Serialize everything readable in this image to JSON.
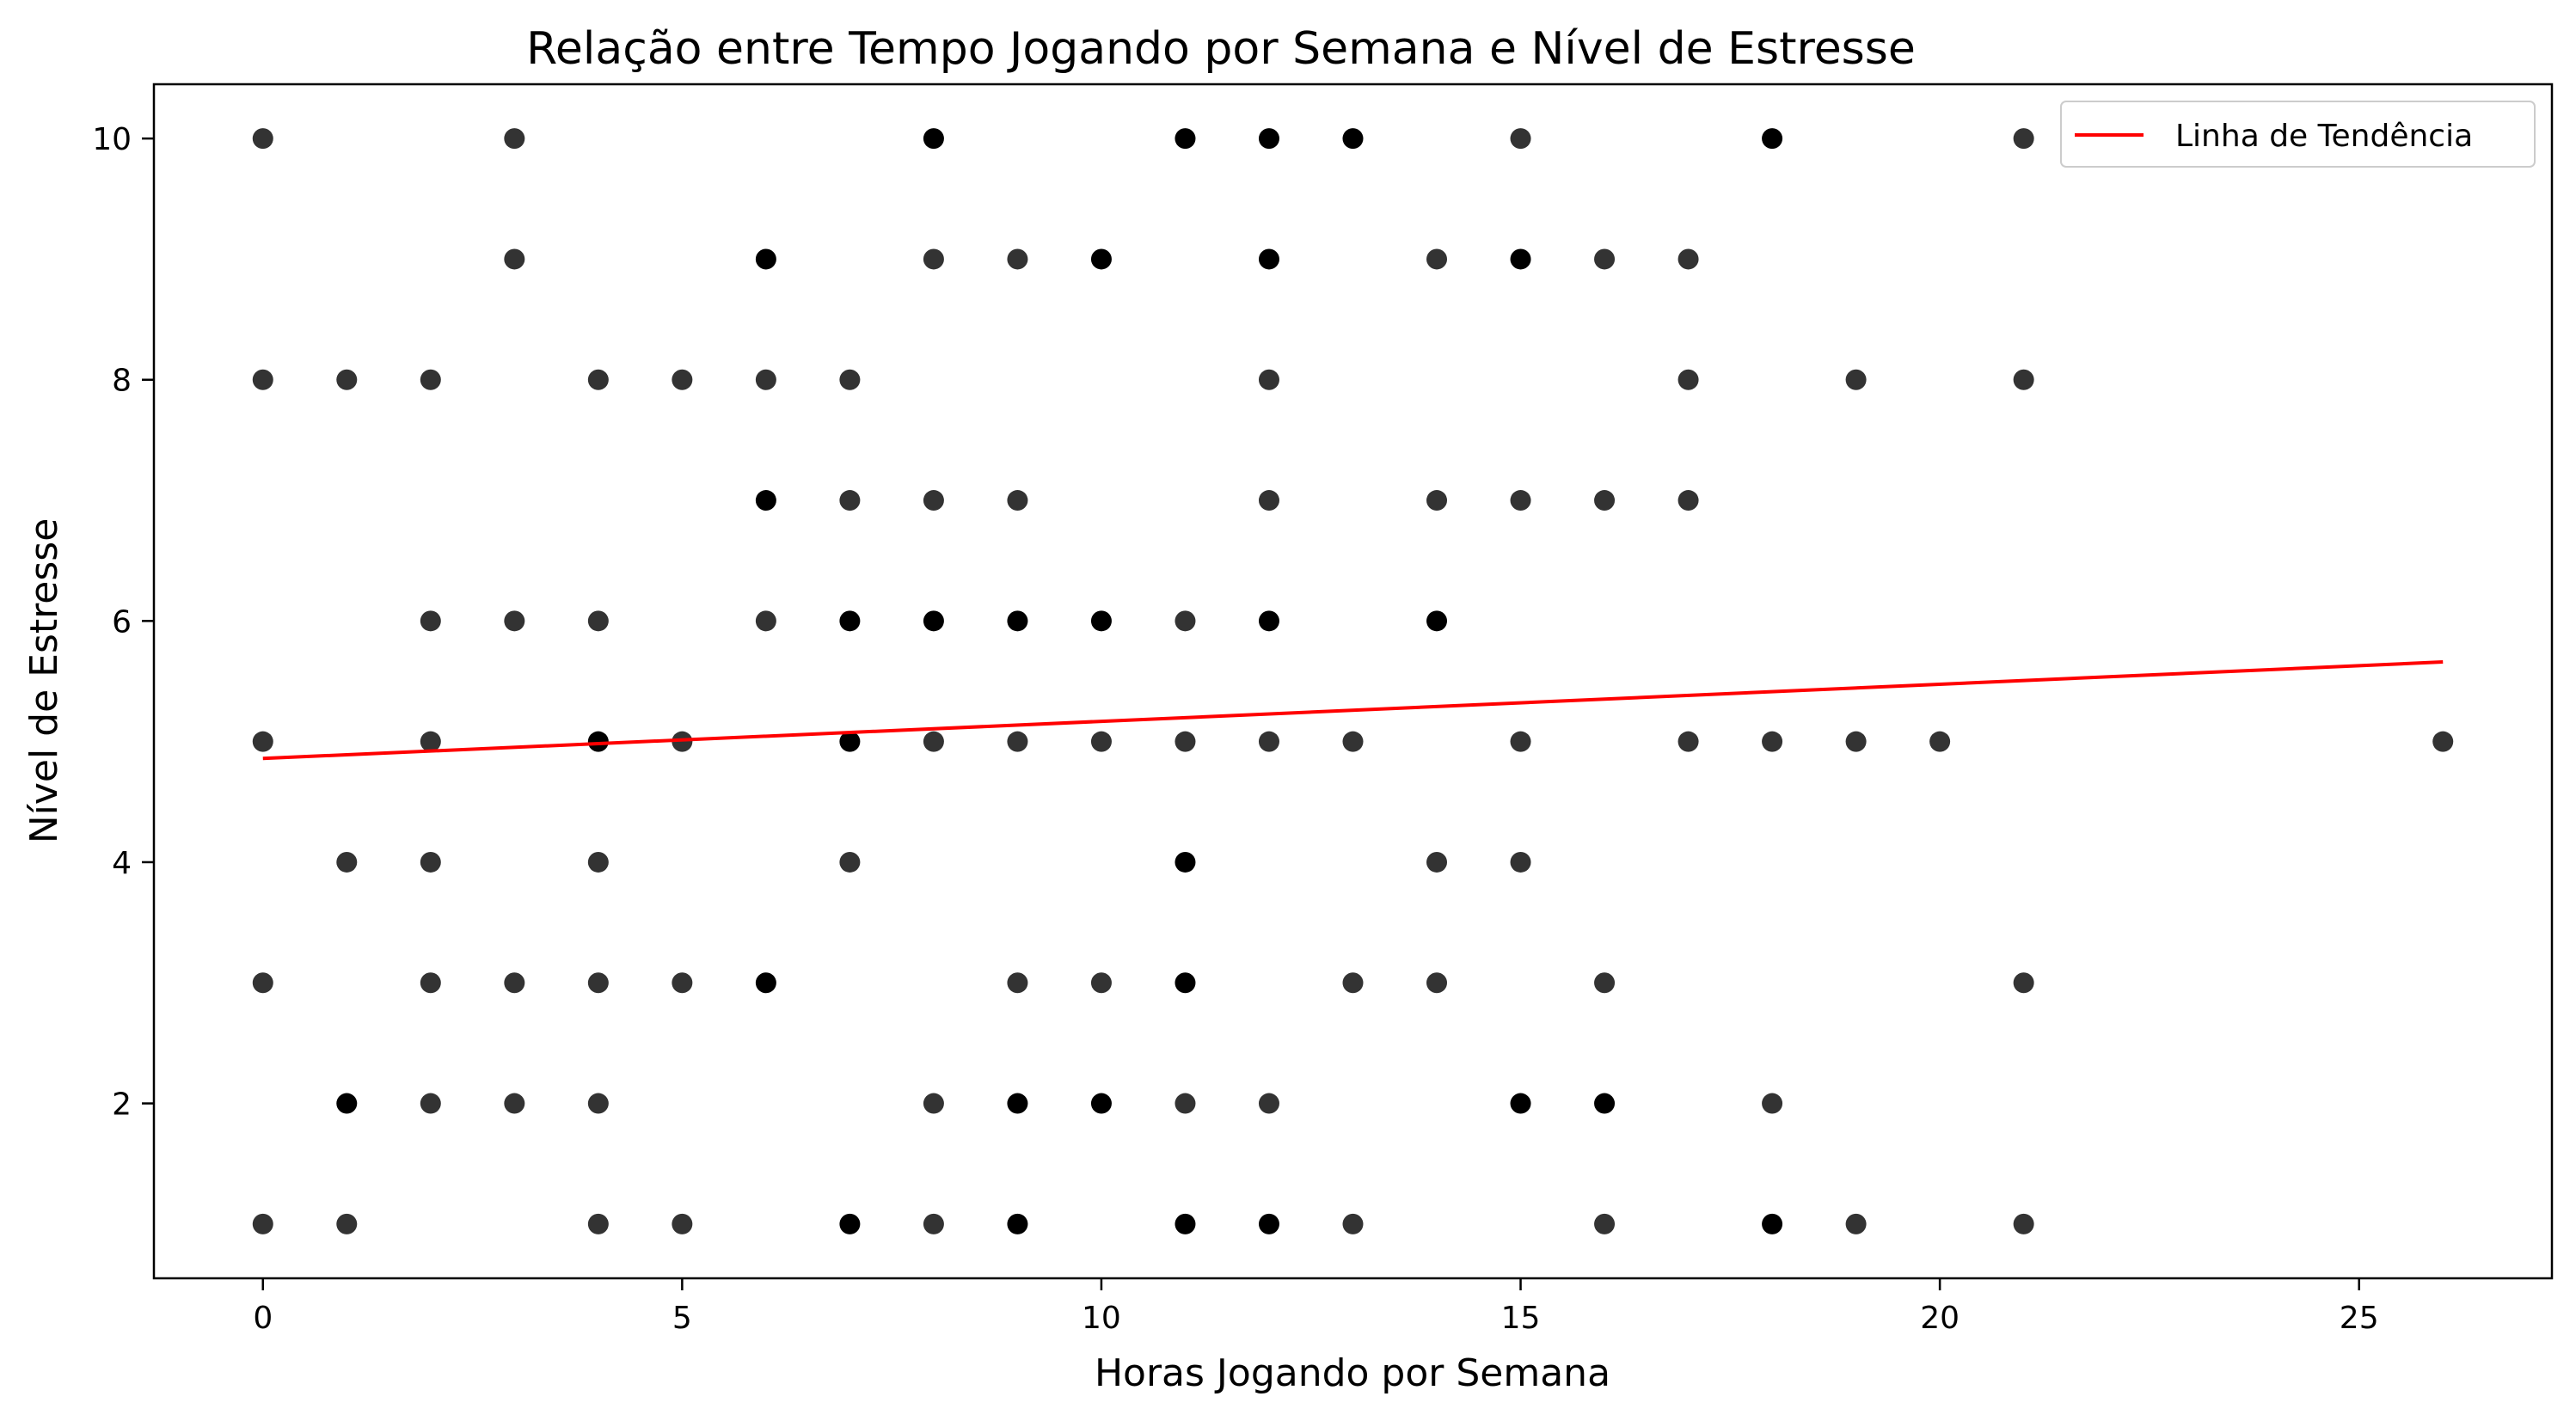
{
  "chart_data": {
    "type": "scatter",
    "title": "Relação entre Tempo Jogando por Semana e Nível de Estresse",
    "xlabel": "Horas Jogando por Semana",
    "ylabel": "Nível de Estresse",
    "xlim": [
      -1.3,
      27.3
    ],
    "ylim": [
      0.55,
      10.45
    ],
    "xticks": [
      0,
      5,
      10,
      15,
      20,
      25
    ],
    "yticks": [
      2,
      4,
      6,
      8,
      10
    ],
    "grid": false,
    "legend": {
      "placement": "top-right",
      "entries": [
        "Linha de Tendência"
      ]
    },
    "colors": {
      "points": "#000000",
      "trend": "#ff0000"
    },
    "points": [
      [
        0,
        10
      ],
      [
        3,
        10
      ],
      [
        8,
        10
      ],
      [
        11,
        10
      ],
      [
        12,
        10
      ],
      [
        13,
        10
      ],
      [
        15,
        10
      ],
      [
        18,
        10
      ],
      [
        21,
        10
      ],
      [
        3,
        9
      ],
      [
        6,
        9
      ],
      [
        8,
        9
      ],
      [
        9,
        9
      ],
      [
        10,
        9
      ],
      [
        12,
        9
      ],
      [
        14,
        9
      ],
      [
        15,
        9
      ],
      [
        16,
        9
      ],
      [
        17,
        9
      ],
      [
        0,
        8
      ],
      [
        1,
        8
      ],
      [
        2,
        8
      ],
      [
        4,
        8
      ],
      [
        5,
        8
      ],
      [
        6,
        8
      ],
      [
        7,
        8
      ],
      [
        12,
        8
      ],
      [
        17,
        8
      ],
      [
        19,
        8
      ],
      [
        21,
        8
      ],
      [
        6,
        7
      ],
      [
        7,
        7
      ],
      [
        8,
        7
      ],
      [
        9,
        7
      ],
      [
        12,
        7
      ],
      [
        14,
        7
      ],
      [
        15,
        7
      ],
      [
        16,
        7
      ],
      [
        17,
        7
      ],
      [
        2,
        6
      ],
      [
        3,
        6
      ],
      [
        4,
        6
      ],
      [
        6,
        6
      ],
      [
        7,
        6
      ],
      [
        8,
        6
      ],
      [
        9,
        6
      ],
      [
        10,
        6
      ],
      [
        11,
        6
      ],
      [
        12,
        6
      ],
      [
        14,
        6
      ],
      [
        0,
        5
      ],
      [
        2,
        5
      ],
      [
        4,
        5
      ],
      [
        5,
        5
      ],
      [
        7,
        5
      ],
      [
        8,
        5
      ],
      [
        9,
        5
      ],
      [
        10,
        5
      ],
      [
        11,
        5
      ],
      [
        12,
        5
      ],
      [
        13,
        5
      ],
      [
        15,
        5
      ],
      [
        17,
        5
      ],
      [
        18,
        5
      ],
      [
        19,
        5
      ],
      [
        20,
        5
      ],
      [
        26,
        5
      ],
      [
        1,
        4
      ],
      [
        2,
        4
      ],
      [
        4,
        4
      ],
      [
        7,
        4
      ],
      [
        11,
        4
      ],
      [
        14,
        4
      ],
      [
        15,
        4
      ],
      [
        0,
        3
      ],
      [
        2,
        3
      ],
      [
        3,
        3
      ],
      [
        4,
        3
      ],
      [
        5,
        3
      ],
      [
        6,
        3
      ],
      [
        9,
        3
      ],
      [
        10,
        3
      ],
      [
        11,
        3
      ],
      [
        13,
        3
      ],
      [
        14,
        3
      ],
      [
        16,
        3
      ],
      [
        21,
        3
      ],
      [
        1,
        2
      ],
      [
        2,
        2
      ],
      [
        3,
        2
      ],
      [
        4,
        2
      ],
      [
        8,
        2
      ],
      [
        9,
        2
      ],
      [
        10,
        2
      ],
      [
        11,
        2
      ],
      [
        12,
        2
      ],
      [
        15,
        2
      ],
      [
        16,
        2
      ],
      [
        18,
        2
      ],
      [
        0,
        1
      ],
      [
        1,
        1
      ],
      [
        4,
        1
      ],
      [
        5,
        1
      ],
      [
        7,
        1
      ],
      [
        8,
        1
      ],
      [
        9,
        1
      ],
      [
        11,
        1
      ],
      [
        12,
        1
      ],
      [
        13,
        1
      ],
      [
        16,
        1
      ],
      [
        18,
        1
      ],
      [
        19,
        1
      ],
      [
        21,
        1
      ]
    ],
    "dark_points": [
      [
        8,
        10
      ],
      [
        11,
        10
      ],
      [
        12,
        10
      ],
      [
        13,
        10
      ],
      [
        18,
        10
      ],
      [
        6,
        9
      ],
      [
        10,
        9
      ],
      [
        12,
        9
      ],
      [
        15,
        9
      ],
      [
        6,
        7
      ],
      [
        7,
        6
      ],
      [
        8,
        6
      ],
      [
        9,
        6
      ],
      [
        10,
        6
      ],
      [
        12,
        6
      ],
      [
        14,
        6
      ],
      [
        4,
        5
      ],
      [
        7,
        5
      ],
      [
        11,
        4
      ],
      [
        6,
        3
      ],
      [
        11,
        3
      ],
      [
        1,
        2
      ],
      [
        9,
        2
      ],
      [
        10,
        2
      ],
      [
        15,
        2
      ],
      [
        16,
        2
      ],
      [
        7,
        1
      ],
      [
        9,
        1
      ],
      [
        11,
        1
      ],
      [
        12,
        1
      ],
      [
        18,
        1
      ]
    ],
    "trend_line": {
      "x": [
        0,
        26
      ],
      "y": [
        4.86,
        5.66
      ]
    }
  }
}
